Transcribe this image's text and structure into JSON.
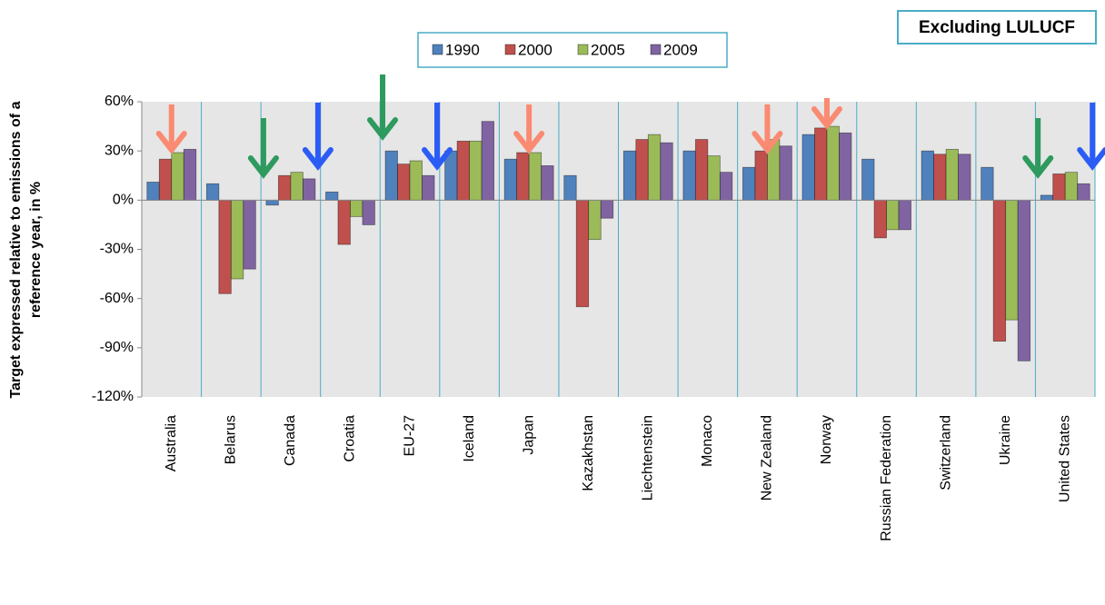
{
  "chart_data": {
    "type": "bar",
    "annotation": "Excluding LULUCF",
    "ylabel": [
      "Target  expressed relative to emissions of a",
      "reference year, in %"
    ],
    "categories": [
      "Australia",
      "Belarus",
      "Canada",
      "Croatia",
      "EU-27",
      "Iceland",
      "Japan",
      "Kazakhstan",
      "Liechtenstein",
      "Monaco",
      "New Zealand",
      "Norway",
      "Russian Federation",
      "Switzerland",
      "Ukraine",
      "United States"
    ],
    "series": [
      {
        "name": "1990",
        "color": "#4f81bd",
        "values": [
          11,
          10,
          -3,
          5,
          30,
          30,
          25,
          15,
          30,
          30,
          20,
          40,
          25,
          30,
          20,
          3
        ]
      },
      {
        "name": "2000",
        "color": "#c0504d",
        "values": [
          25,
          -57,
          15,
          -27,
          22,
          36,
          29,
          -65,
          37,
          37,
          30,
          44,
          -23,
          28,
          -86,
          16
        ]
      },
      {
        "name": "2005",
        "color": "#9bbb59",
        "values": [
          29,
          -48,
          17,
          -10,
          24,
          36,
          29,
          -24,
          40,
          27,
          37,
          45,
          -18,
          31,
          -73,
          17
        ]
      },
      {
        "name": "2009",
        "color": "#8064a2",
        "values": [
          31,
          -42,
          13,
          -15,
          15,
          48,
          21,
          -11,
          35,
          17,
          33,
          41,
          -18,
          28,
          -98,
          10
        ]
      }
    ],
    "ylim": [
      -120,
      60
    ],
    "yticks": [
      {
        "value": -120,
        "label": "-120%"
      },
      {
        "value": -90,
        "label": "-90%"
      },
      {
        "value": -60,
        "label": "-60%"
      },
      {
        "value": -30,
        "label": "-30%"
      },
      {
        "value": 0,
        "label": "0%"
      },
      {
        "value": 30,
        "label": "30%"
      },
      {
        "value": 60,
        "label": "60%"
      }
    ],
    "grid": false
  }
}
